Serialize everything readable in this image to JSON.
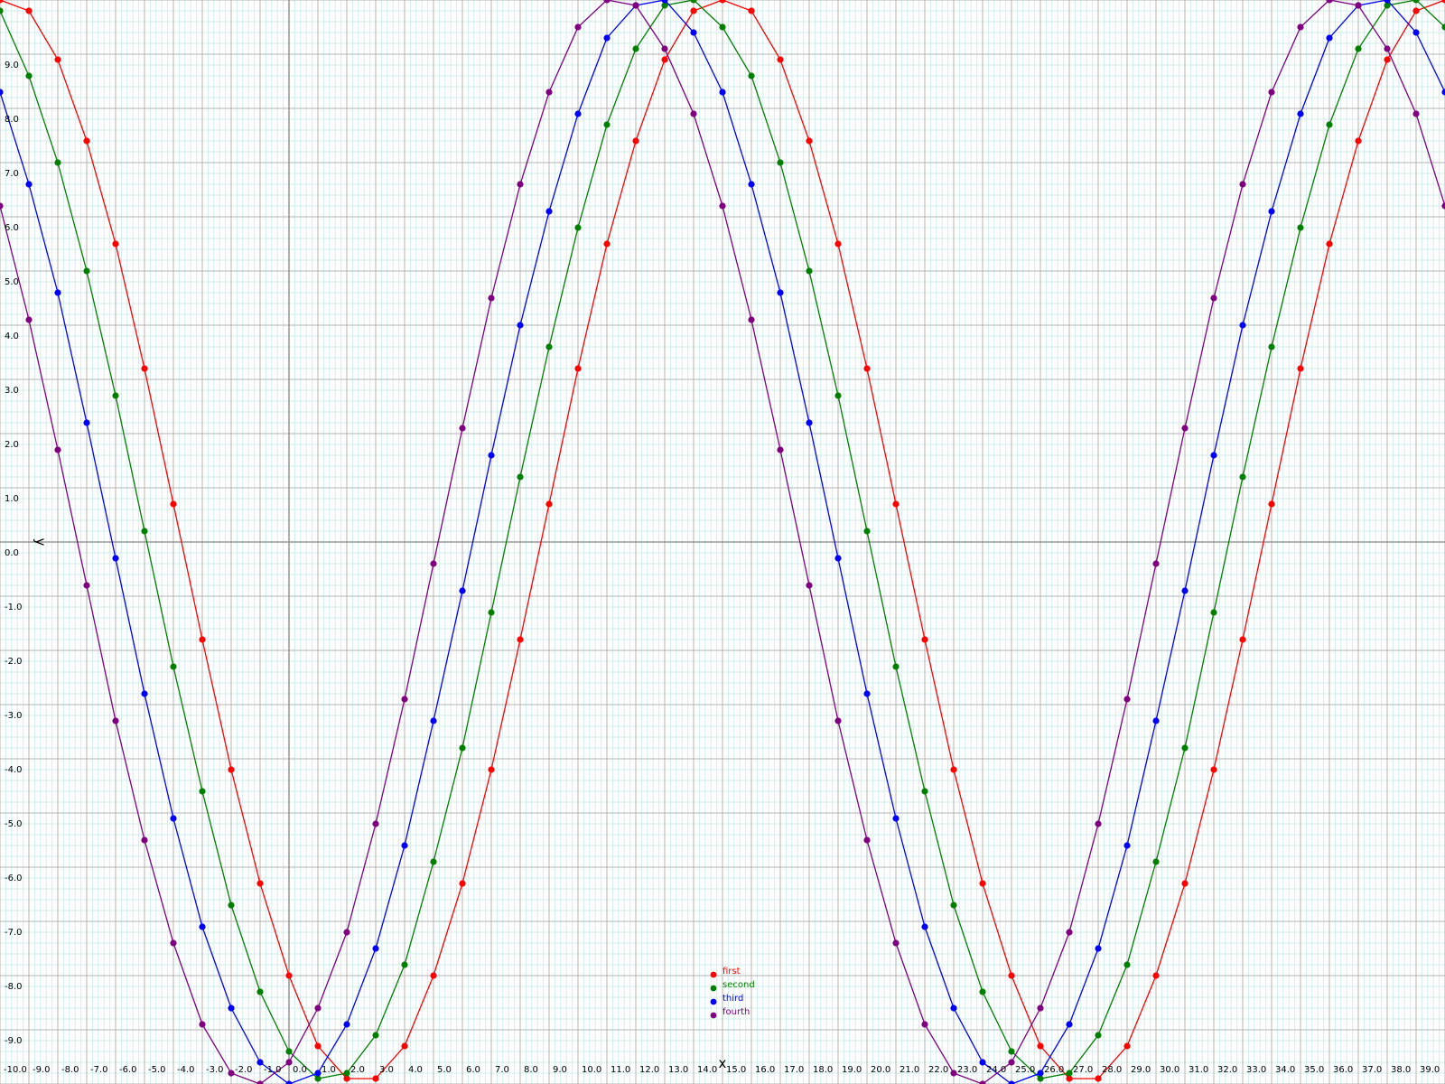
{
  "chart_data": {
    "type": "line",
    "xlabel": "x",
    "ylabel": "y",
    "xlim": [
      -10,
      40
    ],
    "ylim": [
      -10,
      10
    ],
    "x_tick_labels": [
      "-10.0",
      "-9.0",
      "-8.0",
      "-7.0",
      "-6.0",
      "-5.0",
      "-4.0",
      "-3.0",
      "-2.0",
      "-1.0",
      "0.0",
      "1.0",
      "2.0",
      "3.0",
      "4.0",
      "5.0",
      "6.0",
      "7.0",
      "8.0",
      "9.0",
      "10.0",
      "11.0",
      "12.0",
      "13.0",
      "14.0",
      "15.0",
      "16.0",
      "17.0",
      "18.0",
      "19.0",
      "20.0",
      "21.0",
      "22.0",
      "23.0",
      "24.0",
      "25.0",
      "26.0",
      "27.0",
      "28.0",
      "29.0",
      "30.0",
      "31.0",
      "32.0",
      "33.0",
      "34.0",
      "35.0",
      "36.0",
      "37.0",
      "38.0",
      "39.0"
    ],
    "y_tick_labels": [
      "9.0",
      "8.0",
      "7.0",
      "6.0",
      "5.0",
      "4.0",
      "3.0",
      "2.0",
      "1.0",
      "0.0",
      "-1.0",
      "-2.0",
      "-3.0",
      "-4.0",
      "-5.0",
      "-6.0",
      "-7.0",
      "-8.0",
      "-9.0"
    ],
    "grid": true,
    "legend_position": "bottom-center",
    "x": [
      -10,
      -9,
      -8,
      -7,
      -6,
      -5,
      -4,
      -3,
      -2,
      -1,
      0,
      1,
      2,
      3,
      4,
      5,
      6,
      7,
      8,
      9,
      10,
      11,
      12,
      13,
      14,
      15,
      16,
      17,
      18,
      19,
      20,
      21,
      22,
      23,
      24,
      25,
      26,
      27,
      28,
      29,
      30,
      31,
      32,
      33,
      34,
      35,
      36,
      37,
      38,
      39,
      40
    ],
    "series": [
      {
        "name": "first",
        "color": "#ff0000",
        "values": [
          10.0,
          9.8,
          8.9,
          7.4,
          5.5,
          3.2,
          0.7,
          -1.8,
          -4.2,
          -6.3,
          -8.0,
          -9.3,
          -9.9,
          -9.9,
          -9.3,
          -8.0,
          -6.3,
          -4.2,
          -1.8,
          0.7,
          3.2,
          5.5,
          7.4,
          8.9,
          9.8,
          10.0,
          9.8,
          8.9,
          7.4,
          5.5,
          3.2,
          0.7,
          -1.8,
          -4.2,
          -6.3,
          -8.0,
          -9.3,
          -9.9,
          -9.9,
          -9.3,
          -8.0,
          -6.3,
          -4.2,
          -1.8,
          0.7,
          3.2,
          5.5,
          7.4,
          8.9,
          9.8,
          10.0
        ]
      },
      {
        "name": "second",
        "color": "#008000",
        "values": [
          9.8,
          8.6,
          7.0,
          5.0,
          2.7,
          0.2,
          -2.3,
          -4.6,
          -6.7,
          -8.3,
          -9.4,
          -9.9,
          -9.8,
          -9.1,
          -7.8,
          -5.9,
          -3.8,
          -1.3,
          1.2,
          3.6,
          5.8,
          7.7,
          9.1,
          9.9,
          10.0,
          9.5,
          8.6,
          7.0,
          5.0,
          2.7,
          0.2,
          -2.3,
          -4.6,
          -6.7,
          -8.3,
          -9.4,
          -9.9,
          -9.8,
          -9.1,
          -7.8,
          -5.9,
          -3.8,
          -1.3,
          1.2,
          3.6,
          5.8,
          7.7,
          9.1,
          9.9,
          10.0,
          9.5
        ]
      },
      {
        "name": "third",
        "color": "#0000ff",
        "values": [
          8.3,
          6.6,
          4.6,
          2.2,
          -0.3,
          -2.8,
          -5.1,
          -7.1,
          -8.6,
          -9.6,
          -10.0,
          -9.8,
          -8.9,
          -7.5,
          -5.6,
          -3.3,
          -0.9,
          1.6,
          4.0,
          6.1,
          7.9,
          9.3,
          9.9,
          10.0,
          9.4,
          8.3,
          6.6,
          4.6,
          2.2,
          -0.3,
          -2.8,
          -5.1,
          -7.1,
          -8.6,
          -9.6,
          -10.0,
          -9.8,
          -8.9,
          -7.5,
          -5.6,
          -3.3,
          -0.9,
          1.6,
          4.0,
          6.1,
          7.9,
          9.3,
          9.9,
          10.0,
          9.4,
          8.3
        ]
      },
      {
        "name": "fourth",
        "color": "#800080",
        "values": [
          6.2,
          4.1,
          1.7,
          -0.8,
          -3.3,
          -5.5,
          -7.4,
          -8.9,
          -9.8,
          -10.0,
          -9.6,
          -8.6,
          -7.2,
          -5.2,
          -2.9,
          -0.4,
          2.1,
          4.5,
          6.6,
          8.3,
          9.5,
          10.0,
          9.9,
          9.1,
          7.9,
          6.2,
          4.1,
          1.7,
          -0.8,
          -3.3,
          -5.5,
          -7.4,
          -8.9,
          -9.8,
          -10.0,
          -9.6,
          -8.6,
          -7.2,
          -5.2,
          -2.9,
          -0.4,
          2.1,
          4.5,
          6.6,
          8.3,
          9.5,
          10.0,
          9.9,
          9.1,
          7.9,
          6.2
        ]
      }
    ]
  }
}
